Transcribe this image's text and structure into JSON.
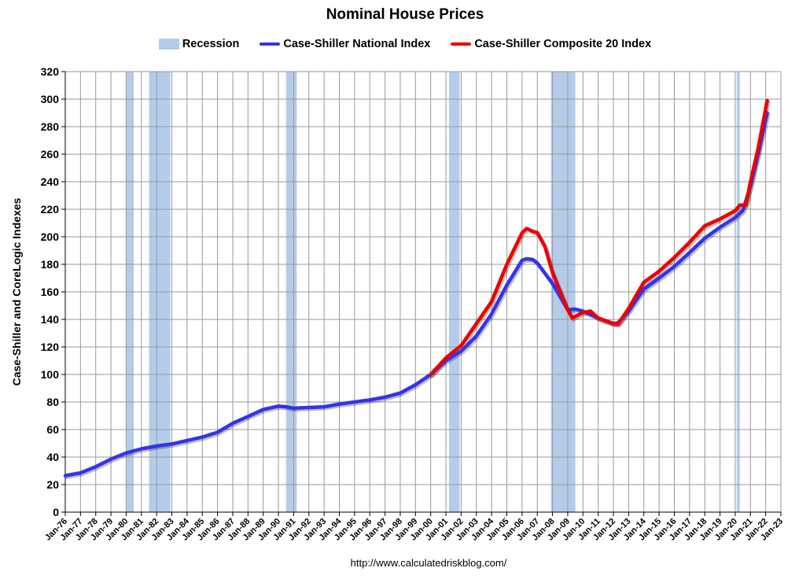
{
  "chart_data": {
    "type": "line",
    "title": "Nominal House Prices",
    "ylabel": "Case-Shiller and CoreLogic Indexes",
    "xlabel": "",
    "ylim": [
      0,
      320
    ],
    "xlim": [
      1976,
      2023
    ],
    "yticks": [
      0,
      20,
      40,
      60,
      80,
      100,
      120,
      140,
      160,
      180,
      200,
      220,
      240,
      260,
      280,
      300,
      320
    ],
    "xtick_labels": [
      "Jan-76",
      "Jan-77",
      "Jan-78",
      "Jan-79",
      "Jan-80",
      "Jan-81",
      "Jan-82",
      "Jan-83",
      "Jan-84",
      "Jan-85",
      "Jan-86",
      "Jan-87",
      "Jan-88",
      "Jan-89",
      "Jan-90",
      "Jan-91",
      "Jan-92",
      "Jan-93",
      "Jan-94",
      "Jan-95",
      "Jan-96",
      "Jan-97",
      "Jan-98",
      "Jan-99",
      "Jan-00",
      "Jan-01",
      "Jan-02",
      "Jan-03",
      "Jan-04",
      "Jan-05",
      "Jan-06",
      "Jan-07",
      "Jan-08",
      "Jan-09",
      "Jan-10",
      "Jan-11",
      "Jan-12",
      "Jan-13",
      "Jan-14",
      "Jan-15",
      "Jan-16",
      "Jan-17",
      "Jan-18",
      "Jan-19",
      "Jan-20",
      "Jan-21",
      "Jan-22",
      "Jan-23"
    ],
    "grid": true,
    "legend_position": "top",
    "recessions": [
      {
        "start": 1980.0,
        "end": 1980.5
      },
      {
        "start": 1981.5,
        "end": 1982.9
      },
      {
        "start": 1990.5,
        "end": 1991.2
      },
      {
        "start": 2001.2,
        "end": 2001.9
      },
      {
        "start": 2007.9,
        "end": 2009.5
      },
      {
        "start": 2020.1,
        "end": 2020.3
      }
    ],
    "series": [
      {
        "name": "Case-Shiller National Index",
        "color": "#3333ee",
        "x": [
          1976,
          1977,
          1978,
          1979,
          1980,
          1981,
          1982,
          1983,
          1984,
          1985,
          1986,
          1987,
          1988,
          1989,
          1990,
          1990.5,
          1991,
          1992,
          1993,
          1994,
          1995,
          1996,
          1997,
          1998,
          1999,
          2000,
          2001,
          2002,
          2003,
          2004,
          2005,
          2006,
          2006.3,
          2006.7,
          2007,
          2008,
          2009,
          2009.5,
          2010,
          2011,
          2012,
          2012.3,
          2013,
          2014,
          2015,
          2016,
          2017,
          2018,
          2019,
          2020,
          2020.5,
          2021,
          2021.5,
          2022.1
        ],
        "values": [
          26.5,
          28.5,
          33,
          38.5,
          43,
          46,
          48,
          49.5,
          52,
          54.5,
          58,
          64.5,
          69.5,
          74.5,
          77,
          76.5,
          75.5,
          76,
          76.5,
          78.5,
          80,
          81.5,
          83.5,
          86.5,
          92.5,
          100,
          110,
          117,
          128,
          144,
          165,
          183,
          184,
          183.5,
          181,
          166,
          147,
          147.5,
          146,
          141,
          137,
          137.5,
          146,
          162,
          170,
          178.5,
          188.5,
          199,
          207,
          214,
          219,
          237,
          260,
          290
        ]
      },
      {
        "name": "Case-Shiller Composite 20 Index",
        "color": "#ee0000",
        "x": [
          2000,
          2001,
          2002,
          2003,
          2004,
          2005,
          2006,
          2006.3,
          2006.7,
          2007,
          2007.5,
          2008,
          2009,
          2009.3,
          2010,
          2010.5,
          2011,
          2012,
          2012.3,
          2013,
          2014,
          2015,
          2016,
          2017,
          2018,
          2019,
          2020,
          2020.3,
          2020.7,
          2021,
          2021.5,
          2022.1
        ],
        "values": [
          100,
          112,
          121,
          137,
          153,
          180,
          203,
          206,
          204,
          203,
          193,
          174,
          147,
          141,
          145,
          146,
          141,
          137,
          136.5,
          148,
          167,
          175,
          185,
          196,
          208,
          213,
          219,
          223,
          223,
          240,
          264,
          299
        ]
      }
    ]
  },
  "source_text": "http://www.calculatedriskblog.com/"
}
